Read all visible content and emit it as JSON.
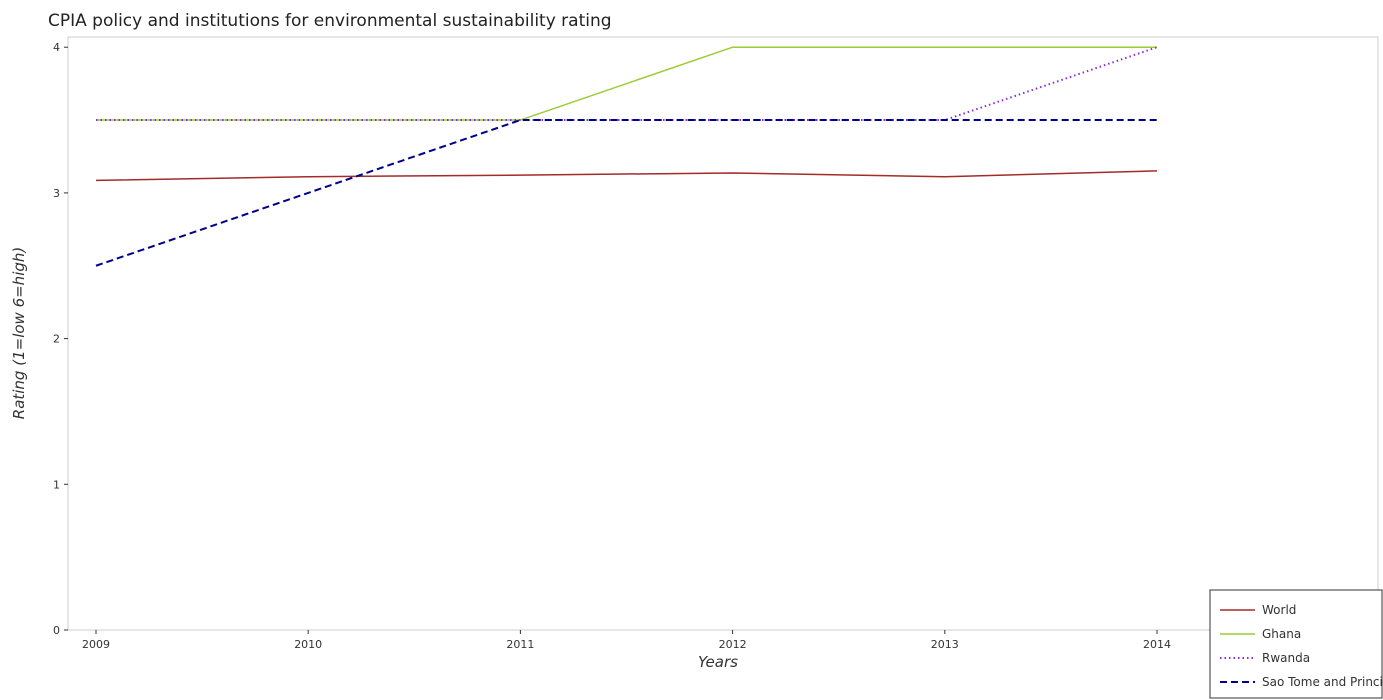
{
  "chart_data": {
    "type": "line",
    "title": "CPIA policy and institutions for environmental sustainability rating",
    "xlabel": "Years",
    "ylabel": "Rating (1=low 6=high)",
    "categories": [
      "2009",
      "2010",
      "2011",
      "2012",
      "2013",
      "2014"
    ],
    "ylim": [
      0,
      4.07
    ],
    "yticks": [
      0,
      1,
      2,
      3,
      4
    ],
    "grid": false,
    "legend_position": "bottom-right",
    "series": [
      {
        "name": "World",
        "color": "#a52a2a",
        "dash": "solid",
        "values": [
          3.086,
          3.111,
          3.122,
          3.137,
          3.111,
          3.151
        ]
      },
      {
        "name": "Ghana",
        "color": "#9acd32",
        "dash": "solid",
        "values": [
          3.5,
          3.5,
          3.5,
          4.0,
          4.0,
          4.0
        ]
      },
      {
        "name": "Rwanda",
        "color": "#8a2be2",
        "dash": "dotted",
        "values": [
          3.5,
          3.5,
          3.5,
          3.5,
          3.5,
          4.0
        ]
      },
      {
        "name": "Sao Tome and Principe",
        "color": "#00008b",
        "dash": "dashed",
        "values": [
          2.5,
          3.0,
          3.5,
          3.5,
          3.5,
          3.5
        ]
      }
    ]
  }
}
